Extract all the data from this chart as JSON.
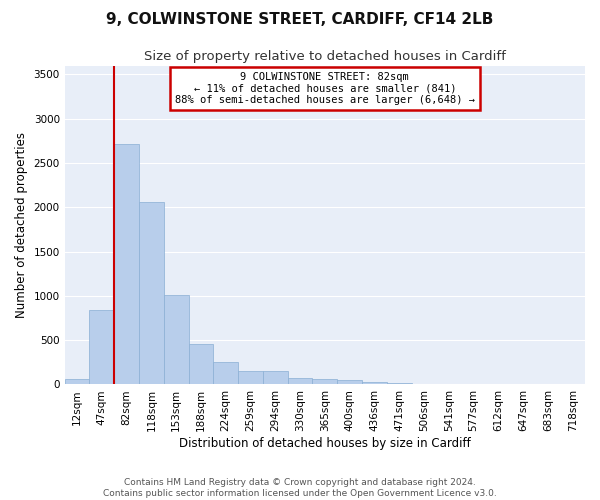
{
  "title": "9, COLWINSTONE STREET, CARDIFF, CF14 2LB",
  "subtitle": "Size of property relative to detached houses in Cardiff",
  "xlabel": "Distribution of detached houses by size in Cardiff",
  "ylabel": "Number of detached properties",
  "categories": [
    "12sqm",
    "47sqm",
    "82sqm",
    "118sqm",
    "153sqm",
    "188sqm",
    "224sqm",
    "259sqm",
    "294sqm",
    "330sqm",
    "365sqm",
    "400sqm",
    "436sqm",
    "471sqm",
    "506sqm",
    "541sqm",
    "577sqm",
    "612sqm",
    "647sqm",
    "683sqm",
    "718sqm"
  ],
  "values": [
    60,
    840,
    2720,
    2060,
    1010,
    460,
    250,
    155,
    155,
    75,
    60,
    45,
    25,
    15,
    10,
    8,
    5,
    3,
    2,
    1,
    1
  ],
  "bar_color": "#b8ceeb",
  "bar_edge_color": "#8aafd4",
  "background_color": "#e8eef8",
  "grid_color": "#ffffff",
  "red_line_index": 2,
  "annotation_text": "9 COLWINSTONE STREET: 82sqm\n← 11% of detached houses are smaller (841)\n88% of semi-detached houses are larger (6,648) →",
  "annotation_box_color": "#ffffff",
  "annotation_border_color": "#cc0000",
  "footer_text": "Contains HM Land Registry data © Crown copyright and database right 2024.\nContains public sector information licensed under the Open Government Licence v3.0.",
  "ylim": [
    0,
    3600
  ],
  "title_fontsize": 11,
  "subtitle_fontsize": 9.5,
  "xlabel_fontsize": 8.5,
  "ylabel_fontsize": 8.5,
  "tick_fontsize": 7.5,
  "footer_fontsize": 6.5,
  "fig_bg_color": "#ffffff"
}
